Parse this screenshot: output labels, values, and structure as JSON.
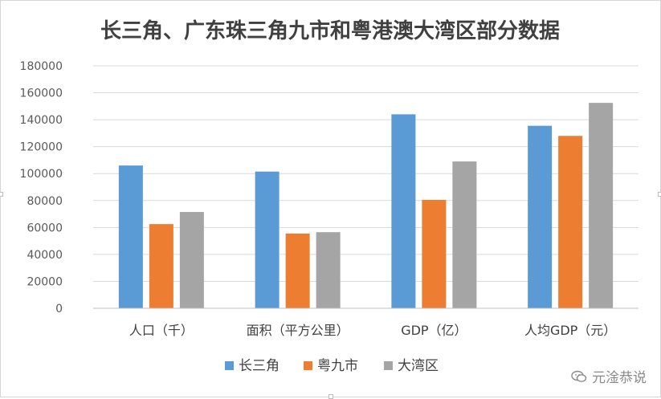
{
  "chart_data": {
    "type": "bar",
    "title": "长三角、广东珠三角九市和粤港澳大湾区部分数据",
    "categories": [
      "人口（千）",
      "面积（平方公里）",
      "GDP（亿）",
      "人均GDP（元）"
    ],
    "series": [
      {
        "name": "长三角",
        "color": "#5b9bd5",
        "values": [
          106000,
          101500,
          144000,
          135500
        ]
      },
      {
        "name": "粤九市",
        "color": "#ed7d31",
        "values": [
          62500,
          55500,
          80500,
          128000
        ]
      },
      {
        "name": "大湾区",
        "color": "#a5a5a5",
        "values": [
          71500,
          56500,
          109000,
          152500
        ]
      }
    ],
    "ylim": [
      0,
      180000
    ],
    "yticks": [
      "0",
      "20000",
      "40000",
      "60000",
      "80000",
      "100000",
      "120000",
      "140000",
      "160000",
      "180000"
    ],
    "grid": true,
    "legend_position": "bottom"
  },
  "watermark": {
    "text": "元淦恭说",
    "icon": "wechat-icon"
  }
}
